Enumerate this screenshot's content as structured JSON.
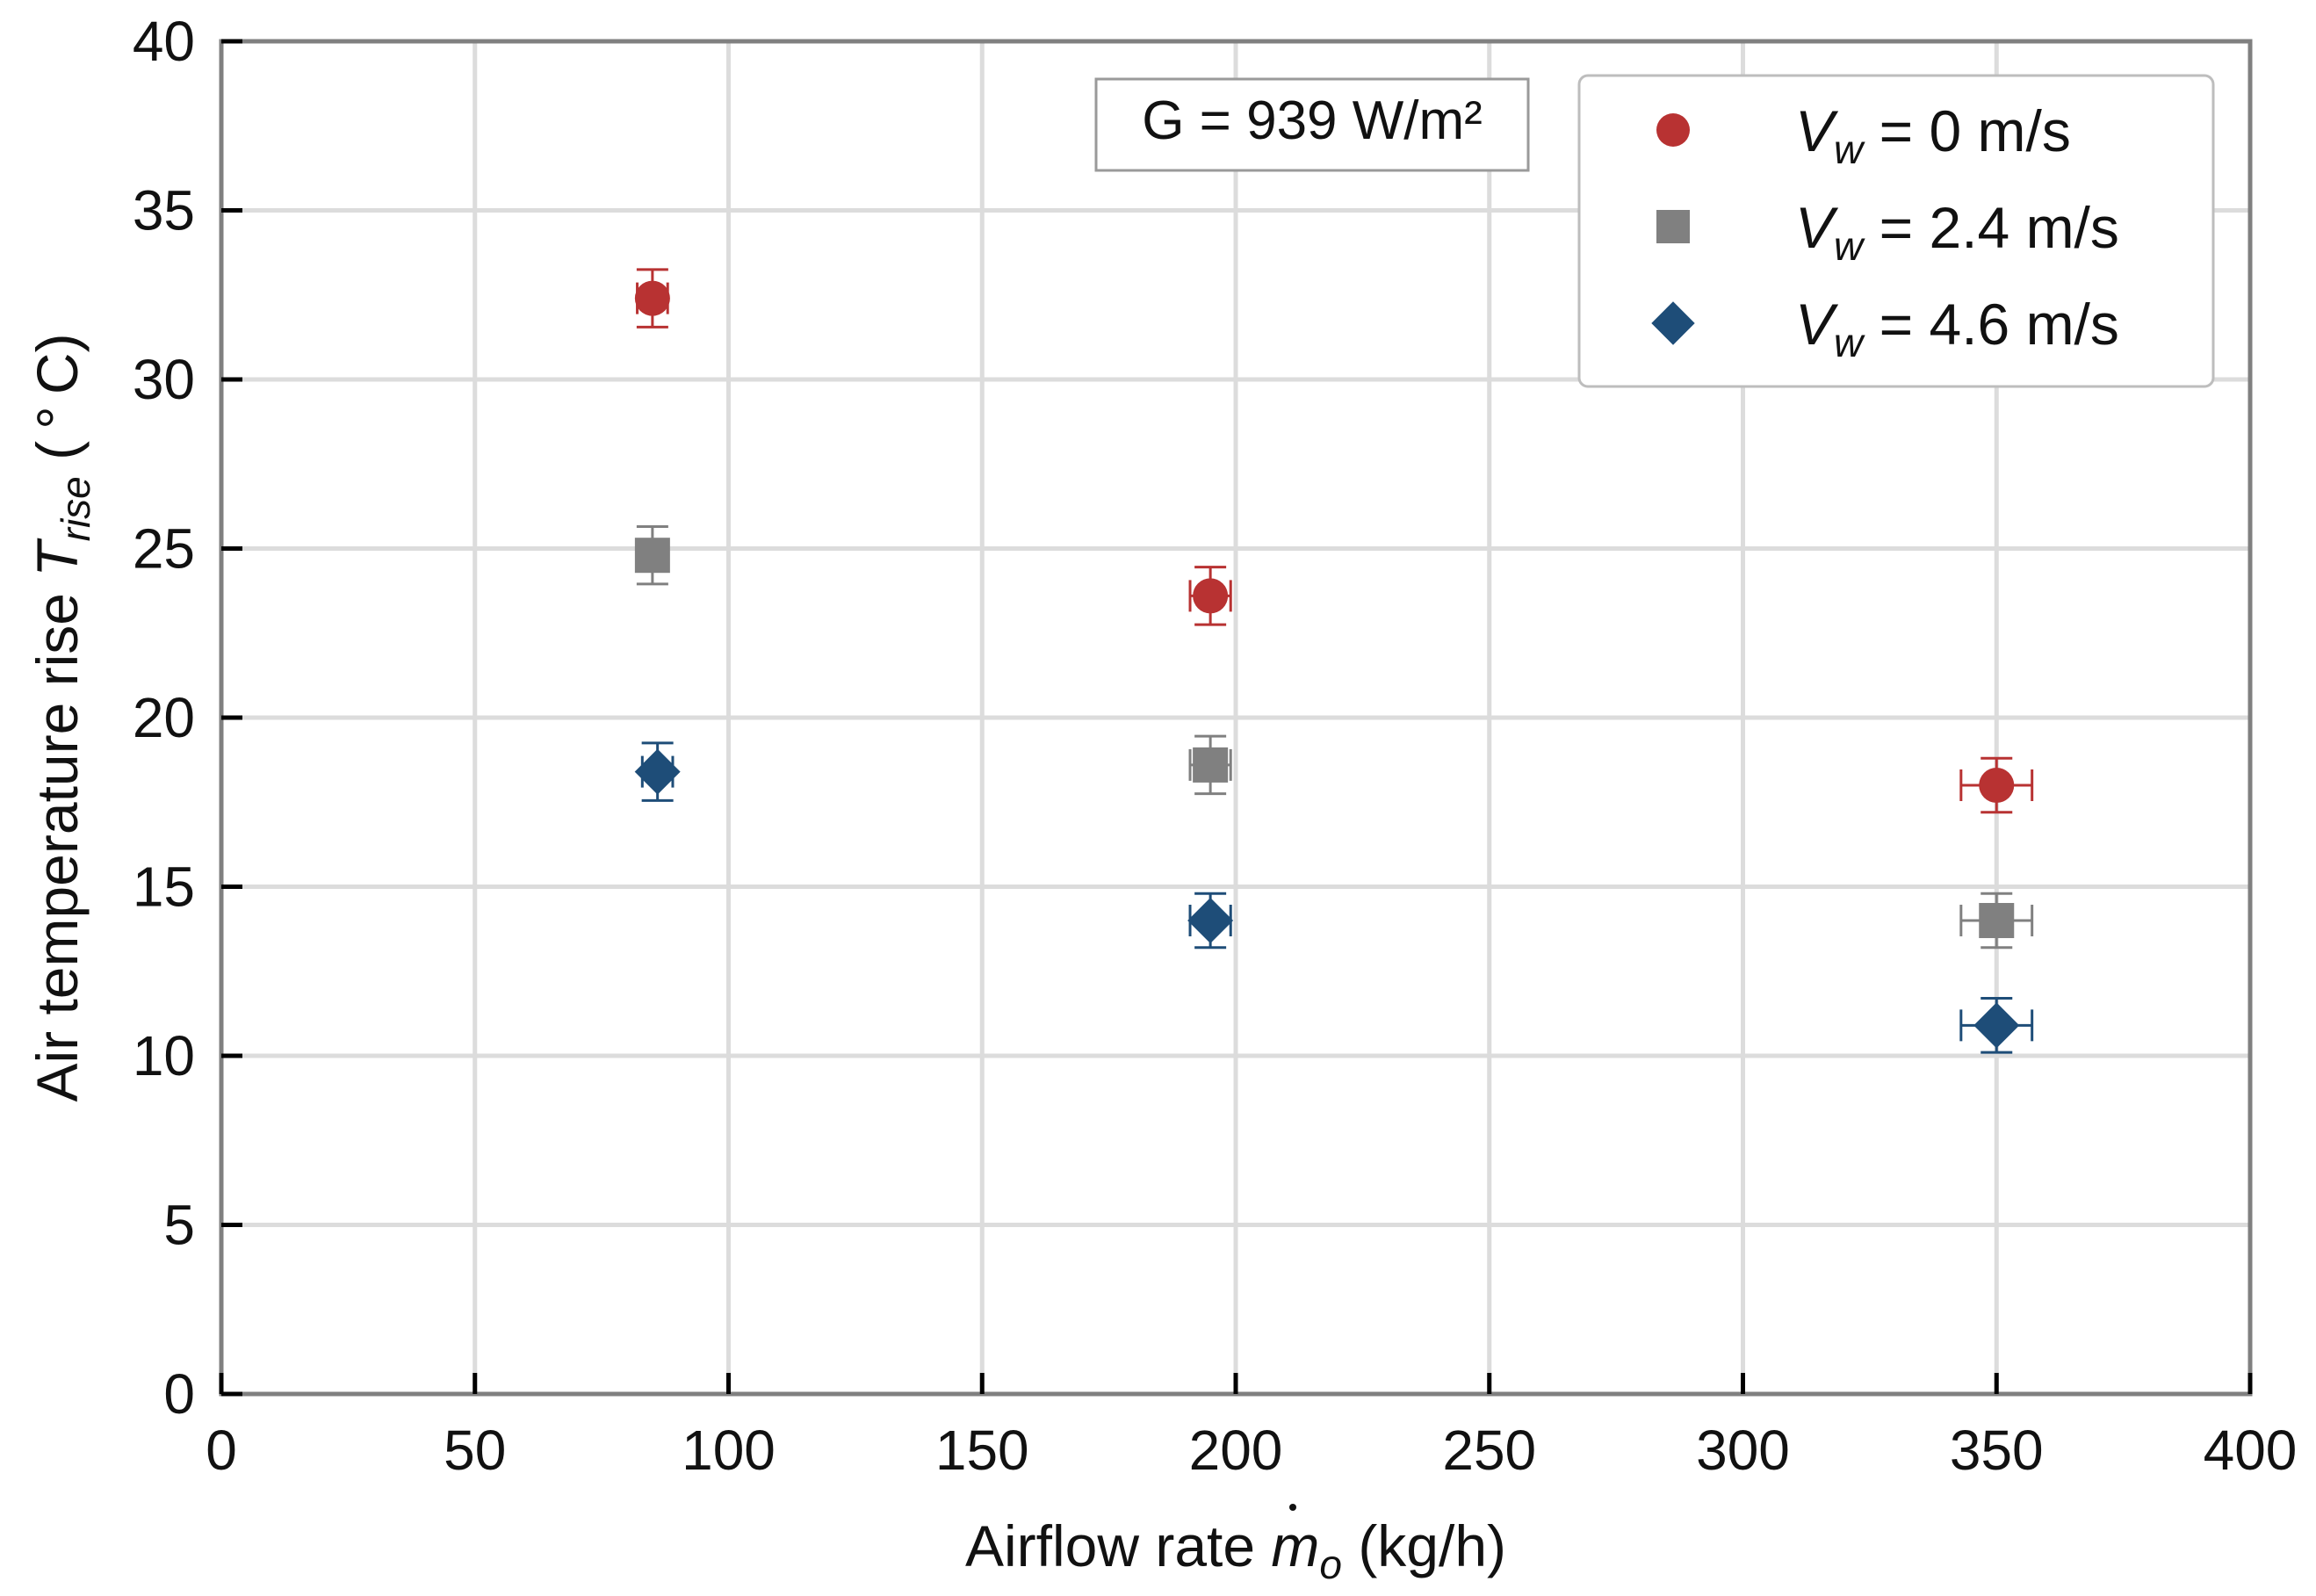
{
  "chart_data": {
    "type": "scatter",
    "title": "",
    "xlabel": {
      "prefix": "Airflow rate ",
      "var": "m",
      "sub": "o",
      "suffix": " (kg/h)"
    },
    "ylabel": {
      "prefix": "Air temperature rise ",
      "var": "T",
      "sub": "rise",
      "suffix": " ( ° C)"
    },
    "xlim": [
      0,
      400
    ],
    "ylim": [
      0,
      40
    ],
    "xticks": [
      0,
      50,
      100,
      150,
      200,
      250,
      300,
      350,
      400
    ],
    "yticks": [
      0,
      5,
      10,
      15,
      20,
      25,
      30,
      35,
      40
    ],
    "grid": true,
    "annotation": "G = 939 W/m²",
    "legend_position": "top-right",
    "series": [
      {
        "name": "V_w = 0 m/s",
        "label_var": "V",
        "label_sub": "w",
        "label_rest": " = 0 m/s",
        "marker": "circle",
        "color": "#b83232",
        "x": [
          85,
          195,
          350
        ],
        "y": [
          32.4,
          23.6,
          18.0
        ],
        "xerr": [
          3,
          4,
          7
        ],
        "yerr": [
          0.85,
          0.85,
          0.8
        ]
      },
      {
        "name": "V_w = 2.4 m/s",
        "label_var": "V",
        "label_sub": "w",
        "label_rest": " = 2.4 m/s",
        "marker": "square",
        "color": "#808080",
        "x": [
          85,
          195,
          350
        ],
        "y": [
          24.8,
          18.6,
          14.0
        ],
        "xerr": [
          3,
          4,
          7
        ],
        "yerr": [
          0.85,
          0.85,
          0.8
        ]
      },
      {
        "name": "V_w = 4.6 m/s",
        "label_var": "V",
        "label_sub": "w",
        "label_rest": " = 4.6 m/s",
        "marker": "diamond",
        "color": "#1e4d78",
        "x": [
          86,
          195,
          350
        ],
        "y": [
          18.4,
          14.0,
          10.9
        ],
        "xerr": [
          3,
          4,
          7
        ],
        "yerr": [
          0.85,
          0.8,
          0.8
        ]
      }
    ]
  }
}
